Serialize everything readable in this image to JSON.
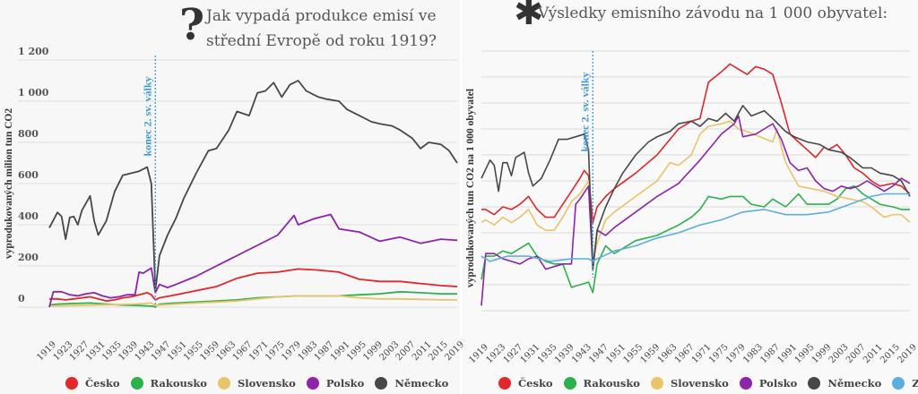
{
  "chart_data": [
    {
      "type": "line",
      "title": "Jak vypadá produkce emisí ve střední Evropě od roku 1919?",
      "title_icon": "question-mark-icon",
      "xlabel": "",
      "ylabel": "vyprodukovaných milion tun CO2",
      "ylim": [
        0,
        1200
      ],
      "yticks": [
        0,
        200,
        400,
        600,
        800,
        1000,
        1200
      ],
      "ytick_labels": [
        "0",
        "200",
        "400",
        "600",
        "800",
        "1 000",
        "1 200"
      ],
      "xlim": [
        1919,
        2019
      ],
      "xticks": [
        1919,
        1923,
        1927,
        1931,
        1935,
        1939,
        1943,
        1947,
        1951,
        1955,
        1959,
        1963,
        1967,
        1971,
        1975,
        1979,
        1983,
        1987,
        1991,
        1995,
        1999,
        2003,
        2007,
        2011,
        2015,
        2019
      ],
      "grid": true,
      "legend_placement": "bottom",
      "annotation": {
        "label": "konec 2. sv. války",
        "x": 1945
      },
      "series": [
        {
          "name": "Česko",
          "color": "#e3262a",
          "x": [
            1919,
            1921,
            1923,
            1925,
            1927,
            1929,
            1931,
            1933,
            1935,
            1937,
            1939,
            1941,
            1943,
            1944,
            1945,
            1946,
            1950,
            1955,
            1960,
            1965,
            1970,
            1975,
            1980,
            1985,
            1990,
            1995,
            2000,
            2005,
            2010,
            2015,
            2019
          ],
          "values": [
            40,
            40,
            35,
            40,
            45,
            50,
            40,
            30,
            35,
            45,
            50,
            60,
            70,
            60,
            35,
            45,
            60,
            80,
            100,
            140,
            165,
            170,
            185,
            180,
            170,
            135,
            125,
            125,
            115,
            105,
            100
          ]
        },
        {
          "name": "Rakousko",
          "color": "#2bb24c",
          "x": [
            1919,
            1921,
            1925,
            1929,
            1933,
            1937,
            1941,
            1944,
            1945,
            1946,
            1950,
            1955,
            1960,
            1965,
            1970,
            1975,
            1980,
            1985,
            1990,
            1995,
            2000,
            2005,
            2010,
            2015,
            2019
          ],
          "values": [
            10,
            15,
            18,
            20,
            15,
            10,
            8,
            5,
            2,
            15,
            20,
            25,
            30,
            35,
            45,
            50,
            55,
            55,
            55,
            60,
            65,
            75,
            70,
            65,
            65
          ]
        },
        {
          "name": "Slovensko",
          "color": "#e9c46a",
          "x": [
            1919,
            1925,
            1930,
            1935,
            1940,
            1944,
            1945,
            1946,
            1950,
            1955,
            1960,
            1965,
            1970,
            1975,
            1980,
            1985,
            1990,
            1995,
            2000,
            2005,
            2010,
            2015,
            2019
          ],
          "values": [
            5,
            8,
            10,
            12,
            15,
            20,
            8,
            10,
            15,
            20,
            25,
            30,
            40,
            50,
            55,
            55,
            55,
            45,
            40,
            40,
            38,
            35,
            35
          ]
        },
        {
          "name": "Polsko",
          "color": "#8e24aa",
          "x": [
            1919,
            1920,
            1922,
            1924,
            1926,
            1928,
            1930,
            1932,
            1934,
            1936,
            1938,
            1940,
            1941,
            1942,
            1944,
            1945,
            1946,
            1948,
            1950,
            1955,
            1960,
            1965,
            1970,
            1975,
            1979,
            1980,
            1984,
            1988,
            1990,
            1995,
            2000,
            2005,
            2010,
            2015,
            2019
          ],
          "values": [
            0,
            75,
            75,
            60,
            55,
            65,
            70,
            55,
            45,
            50,
            60,
            60,
            170,
            165,
            190,
            70,
            110,
            95,
            110,
            150,
            200,
            250,
            300,
            350,
            445,
            400,
            430,
            450,
            380,
            365,
            320,
            340,
            310,
            330,
            325
          ]
        },
        {
          "name": "Německo",
          "color": "#474747",
          "x": [
            1919,
            1921,
            1922,
            1923,
            1924,
            1925,
            1926,
            1927,
            1929,
            1930,
            1931,
            1933,
            1935,
            1937,
            1939,
            1941,
            1943,
            1944,
            1945,
            1946,
            1948,
            1950,
            1952,
            1955,
            1958,
            1960,
            1963,
            1965,
            1968,
            1970,
            1972,
            1974,
            1976,
            1978,
            1980,
            1982,
            1985,
            1987,
            1990,
            1992,
            1995,
            1998,
            2000,
            2003,
            2005,
            2008,
            2010,
            2012,
            2015,
            2017,
            2019
          ],
          "values": [
            385,
            460,
            440,
            330,
            435,
            440,
            400,
            470,
            540,
            420,
            350,
            420,
            560,
            640,
            650,
            660,
            680,
            600,
            80,
            250,
            350,
            430,
            530,
            650,
            760,
            770,
            860,
            950,
            930,
            1040,
            1050,
            1090,
            1020,
            1080,
            1100,
            1050,
            1020,
            1010,
            1000,
            960,
            930,
            900,
            890,
            880,
            860,
            820,
            770,
            800,
            790,
            760,
            700
          ]
        }
      ]
    },
    {
      "type": "line",
      "title": "Výsledky emisního závodu na 1 000 obyvatel:",
      "title_icon": "asterisk-icon",
      "xlabel": "",
      "ylabel": "vyprodukovaných tun CO2 na 1 000 obyvatel",
      "ylim": [
        0,
        10
      ],
      "yticks": [
        0,
        1,
        2,
        3,
        4,
        5,
        6,
        7,
        8,
        9,
        10
      ],
      "ytick_labels": [],
      "xlim": [
        1919,
        2019
      ],
      "xticks": [
        1919,
        1923,
        1927,
        1931,
        1935,
        1939,
        1943,
        1947,
        1951,
        1955,
        1959,
        1963,
        1967,
        1971,
        1975,
        1979,
        1983,
        1987,
        1991,
        1995,
        1999,
        2003,
        2007,
        2011,
        2015,
        2019
      ],
      "grid": true,
      "legend_placement": "bottom",
      "annotation": {
        "label": "konec 2. sv. války",
        "x": 1945
      },
      "series": [
        {
          "name": "Česko",
          "color": "#e3262a",
          "x": [
            1919,
            1920,
            1922,
            1924,
            1926,
            1928,
            1930,
            1932,
            1934,
            1936,
            1938,
            1940,
            1942,
            1943,
            1944,
            1945,
            1946,
            1948,
            1950,
            1955,
            1960,
            1965,
            1968,
            1970,
            1972,
            1975,
            1977,
            1979,
            1981,
            1983,
            1985,
            1987,
            1989,
            1991,
            1993,
            1995,
            1997,
            1999,
            2000,
            2002,
            2004,
            2006,
            2008,
            2010,
            2012,
            2015,
            2017,
            2019
          ],
          "values": [
            3.9,
            3.9,
            3.7,
            4.0,
            3.9,
            4.1,
            4.4,
            3.9,
            3.6,
            3.6,
            4.1,
            4.6,
            5.1,
            5.4,
            5.2,
            3.4,
            4.0,
            4.4,
            4.7,
            5.3,
            6.0,
            7.0,
            7.3,
            7.4,
            8.8,
            9.2,
            9.5,
            9.3,
            9.1,
            9.4,
            9.3,
            9.1,
            8.0,
            6.8,
            6.5,
            6.2,
            5.9,
            6.3,
            6.2,
            6.4,
            6.0,
            5.5,
            5.3,
            5.0,
            4.8,
            4.9,
            4.8,
            4.5
          ]
        },
        {
          "name": "Rakousko",
          "color": "#2bb24c",
          "x": [
            1919,
            1920,
            1922,
            1924,
            1926,
            1928,
            1930,
            1932,
            1934,
            1936,
            1938,
            1940,
            1942,
            1944,
            1945,
            1946,
            1948,
            1950,
            1955,
            1960,
            1965,
            1968,
            1970,
            1972,
            1975,
            1977,
            1980,
            1982,
            1985,
            1987,
            1990,
            1993,
            1995,
            2000,
            2002,
            2004,
            2006,
            2008,
            2010,
            2012,
            2015,
            2017,
            2019
          ],
          "values": [
            1.2,
            2.1,
            2.1,
            2.3,
            2.2,
            2.4,
            2.6,
            2.1,
            1.9,
            1.8,
            1.8,
            0.9,
            1.0,
            1.1,
            0.7,
            1.8,
            2.5,
            2.2,
            2.7,
            2.9,
            3.3,
            3.6,
            3.9,
            4.4,
            4.3,
            4.4,
            4.4,
            4.1,
            4.0,
            4.3,
            4.0,
            4.5,
            4.1,
            4.1,
            4.3,
            4.7,
            4.8,
            4.5,
            4.3,
            4.1,
            4.0,
            3.9,
            3.9
          ]
        },
        {
          "name": "Slovensko",
          "color": "#e9c46a",
          "x": [
            1919,
            1920,
            1922,
            1924,
            1926,
            1928,
            1930,
            1932,
            1934,
            1936,
            1938,
            1940,
            1942,
            1944,
            1945,
            1946,
            1948,
            1950,
            1955,
            1960,
            1963,
            1965,
            1968,
            1970,
            1972,
            1975,
            1977,
            1979,
            1981,
            1984,
            1987,
            1988,
            1989,
            1990,
            1993,
            1996,
            1999,
            2002,
            2005,
            2008,
            2010,
            2013,
            2015,
            2017,
            2019
          ],
          "values": [
            3.4,
            3.5,
            3.3,
            3.6,
            3.4,
            3.6,
            3.9,
            3.3,
            3.1,
            3.1,
            3.6,
            4.2,
            4.5,
            5.0,
            1.9,
            2.6,
            3.5,
            3.8,
            4.4,
            5.0,
            5.7,
            5.6,
            6.0,
            6.8,
            7.1,
            7.2,
            7.3,
            7.0,
            6.9,
            6.7,
            6.5,
            7.0,
            6.3,
            5.7,
            4.8,
            4.7,
            4.6,
            4.4,
            4.3,
            4.2,
            4.0,
            3.6,
            3.7,
            3.7,
            3.4
          ]
        },
        {
          "name": "Polsko",
          "color": "#8e24aa",
          "x": [
            1919,
            1920,
            1922,
            1924,
            1926,
            1928,
            1930,
            1932,
            1934,
            1936,
            1938,
            1940,
            1941,
            1942,
            1944,
            1945,
            1946,
            1948,
            1950,
            1955,
            1960,
            1965,
            1970,
            1975,
            1978,
            1979,
            1980,
            1983,
            1985,
            1987,
            1989,
            1991,
            1993,
            1995,
            1997,
            1999,
            2001,
            2003,
            2005,
            2007,
            2009,
            2011,
            2013,
            2015,
            2017,
            2019
          ],
          "values": [
            0.2,
            2.2,
            2.2,
            2.0,
            1.9,
            1.8,
            2.0,
            2.1,
            1.6,
            1.7,
            1.8,
            1.8,
            4.1,
            4.3,
            4.8,
            1.6,
            3.1,
            2.9,
            3.2,
            3.8,
            4.4,
            4.9,
            5.8,
            6.8,
            7.2,
            7.5,
            6.7,
            6.8,
            7.0,
            7.2,
            6.6,
            5.7,
            5.4,
            5.5,
            5.0,
            4.7,
            4.6,
            4.8,
            4.7,
            4.8,
            5.0,
            4.8,
            4.6,
            4.8,
            5.1,
            4.9
          ]
        },
        {
          "name": "Německo",
          "color": "#474747",
          "x": [
            1919,
            1921,
            1922,
            1923,
            1924,
            1925,
            1926,
            1927,
            1929,
            1930,
            1931,
            1933,
            1935,
            1937,
            1939,
            1941,
            1943,
            1944,
            1945,
            1946,
            1948,
            1950,
            1952,
            1955,
            1958,
            1960,
            1963,
            1965,
            1968,
            1970,
            1972,
            1974,
            1976,
            1978,
            1980,
            1982,
            1985,
            1987,
            1990,
            1992,
            1995,
            1998,
            2000,
            2003,
            2005,
            2008,
            2010,
            2012,
            2015,
            2017,
            2019
          ],
          "values": [
            5.1,
            5.8,
            5.6,
            4.6,
            5.7,
            5.7,
            5.2,
            5.9,
            6.1,
            5.3,
            4.8,
            5.1,
            5.8,
            6.6,
            6.6,
            6.7,
            6.8,
            6.2,
            1.6,
            3.1,
            4.0,
            4.7,
            5.3,
            6.0,
            6.5,
            6.7,
            6.9,
            7.2,
            7.3,
            7.1,
            7.4,
            7.3,
            7.6,
            7.3,
            7.9,
            7.5,
            7.7,
            7.4,
            6.9,
            6.7,
            6.5,
            6.4,
            6.2,
            6.1,
            5.9,
            5.5,
            5.5,
            5.3,
            5.2,
            5.0,
            4.4
          ]
        },
        {
          "name": "Země",
          "color": "#5aafe0",
          "x": [
            1919,
            1921,
            1923,
            1925,
            1930,
            1935,
            1940,
            1944,
            1945,
            1946,
            1950,
            1955,
            1960,
            1965,
            1970,
            1975,
            1980,
            1985,
            1990,
            1995,
            2000,
            2005,
            2010,
            2013,
            2015,
            2019
          ],
          "values": [
            2.1,
            1.9,
            2.0,
            2.1,
            2.1,
            1.9,
            2.0,
            2.0,
            1.9,
            2.0,
            2.3,
            2.5,
            2.8,
            3.0,
            3.3,
            3.5,
            3.8,
            3.9,
            3.7,
            3.7,
            3.8,
            4.1,
            4.4,
            4.5,
            4.5,
            4.5
          ]
        }
      ]
    }
  ],
  "labels": {
    "left_title": "Jak vypadá produkce emisí ve střední Evropě od roku 1919?",
    "right_title": "Výsledky emisního závodu na 1 000 obyvatel:",
    "question_mark": "?",
    "asterisk": "✱",
    "war_annotation": "konec 2. sv. války"
  }
}
